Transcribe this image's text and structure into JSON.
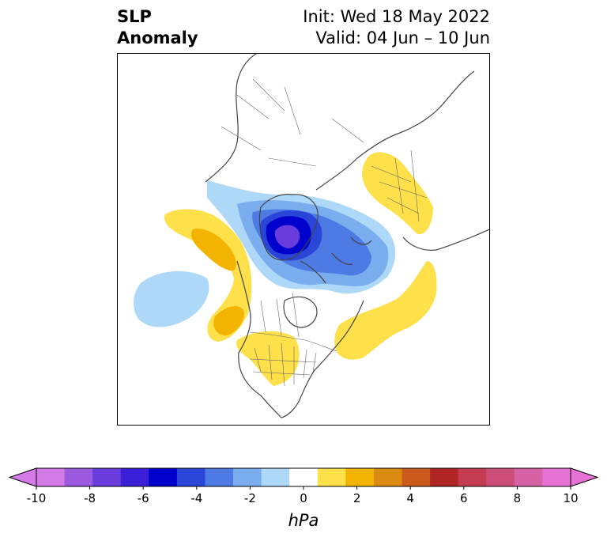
{
  "title": {
    "left_line1": "SLP",
    "left_line2": "Anomaly",
    "right_line1": "Init: Wed 18 May 2022",
    "right_line2": "Valid: 04 Jun – 10 Jun"
  },
  "colorbar": {
    "unit": "hPa",
    "ticks": [
      "-10",
      "-8",
      "-6",
      "-4",
      "-2",
      "0",
      "2",
      "4",
      "6",
      "8",
      "10"
    ],
    "colors": [
      "#d57be8",
      "#9b5ae0",
      "#6a3cdc",
      "#3b1fd6",
      "#0000cc",
      "#2a46d9",
      "#4e7ae3",
      "#7aadee",
      "#add8f7",
      "#ffffff",
      "#fde04a",
      "#f2b400",
      "#db8a12",
      "#c95a1c",
      "#b02525",
      "#c43c52",
      "#cc4e78",
      "#d862a6",
      "#e672d6"
    ],
    "extend": "both"
  },
  "colors": {
    "neg_light": "#add8f7",
    "neg_mid": "#7aadee",
    "neg_dark": "#4e7ae3",
    "neg_core": "#2a46d9",
    "neg_deep": "#0000cc",
    "neg_purple": "#6a3cdc",
    "pos_light": "#fde04a",
    "pos_mid": "#f2b400",
    "coast": "#444444"
  }
}
